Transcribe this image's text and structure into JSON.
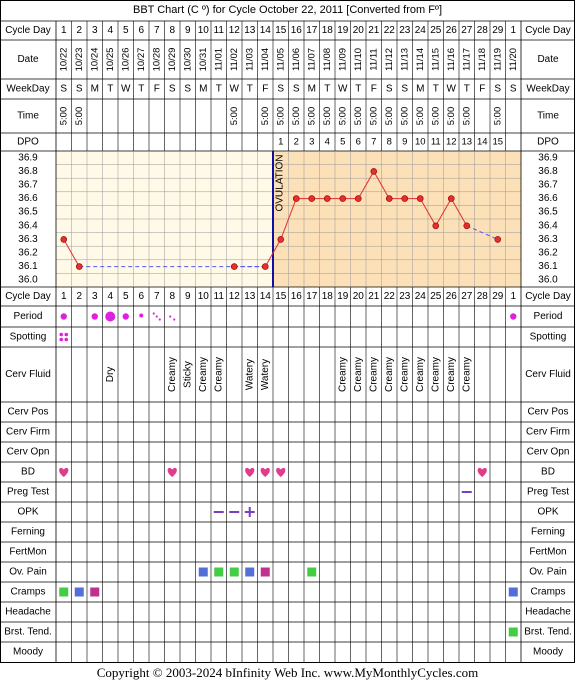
{
  "title": "BBT Chart (C º) for Cycle October 22, 2011  [Converted from Fº]",
  "footer": "Copyright © 2003-2024 bInfinity Web Inc.    www.MyMonthlyCycles.com",
  "labels": {
    "cycle_day": "Cycle Day",
    "date": "Date",
    "weekday": "WeekDay",
    "time": "Time",
    "dpo": "DPO",
    "ovulation": "OVULATION"
  },
  "colors": {
    "pre_ovulation_bg": "#FFF9E8",
    "post_ovulation_bg": "#FCE0B8",
    "ovulation_line": "#1010A0",
    "temp_line": "#E03030",
    "coverline": "#5555EE",
    "period": "#E020E0",
    "bd_heart": "#E03C8C",
    "opk": "#7A3FBF",
    "preg_test": "#7A3FBF",
    "green_square": "#44CC44",
    "blue_square": "#5470D8",
    "magenta_square": "#C0308E"
  },
  "columns": [
    {
      "day": "1",
      "date": "10/22",
      "weekday": "S",
      "time": "5:00"
    },
    {
      "day": "2",
      "date": "10/23",
      "weekday": "S",
      "time": "5:00"
    },
    {
      "day": "3",
      "date": "10/24",
      "weekday": "M",
      "time": ""
    },
    {
      "day": "4",
      "date": "10/25",
      "weekday": "T",
      "time": ""
    },
    {
      "day": "5",
      "date": "10/26",
      "weekday": "W",
      "time": ""
    },
    {
      "day": "6",
      "date": "10/27",
      "weekday": "T",
      "time": ""
    },
    {
      "day": "7",
      "date": "10/28",
      "weekday": "F",
      "time": ""
    },
    {
      "day": "8",
      "date": "10/29",
      "weekday": "S",
      "time": ""
    },
    {
      "day": "9",
      "date": "10/30",
      "weekday": "S",
      "time": ""
    },
    {
      "day": "10",
      "date": "10/31",
      "weekday": "M",
      "time": ""
    },
    {
      "day": "11",
      "date": "11/01",
      "weekday": "T",
      "time": ""
    },
    {
      "day": "12",
      "date": "11/02",
      "weekday": "W",
      "time": "5:00"
    },
    {
      "day": "13",
      "date": "11/03",
      "weekday": "T",
      "time": ""
    },
    {
      "day": "14",
      "date": "11/04",
      "weekday": "F",
      "time": "5:00"
    },
    {
      "day": "15",
      "date": "11/05",
      "weekday": "S",
      "time": "5:00"
    },
    {
      "day": "16",
      "date": "11/06",
      "weekday": "S",
      "time": "5:00"
    },
    {
      "day": "17",
      "date": "11/07",
      "weekday": "M",
      "time": "5:00"
    },
    {
      "day": "18",
      "date": "11/08",
      "weekday": "T",
      "time": "5:00"
    },
    {
      "day": "19",
      "date": "11/09",
      "weekday": "W",
      "time": "5:00"
    },
    {
      "day": "20",
      "date": "11/10",
      "weekday": "T",
      "time": "5:00"
    },
    {
      "day": "21",
      "date": "11/11",
      "weekday": "F",
      "time": "5:00"
    },
    {
      "day": "22",
      "date": "11/12",
      "weekday": "S",
      "time": "5:00"
    },
    {
      "day": "23",
      "date": "11/13",
      "weekday": "S",
      "time": "5:00"
    },
    {
      "day": "24",
      "date": "11/14",
      "weekday": "M",
      "time": "5:00"
    },
    {
      "day": "25",
      "date": "11/15",
      "weekday": "T",
      "time": "5:00"
    },
    {
      "day": "26",
      "date": "11/16",
      "weekday": "W",
      "time": "5:00"
    },
    {
      "day": "27",
      "date": "11/17",
      "weekday": "T",
      "time": "5:00"
    },
    {
      "day": "28",
      "date": "11/18",
      "weekday": "F",
      "time": ""
    },
    {
      "day": "29",
      "date": "11/19",
      "weekday": "S",
      "time": "5:00"
    },
    {
      "day": "1",
      "date": "11/20",
      "weekday": "S",
      "time": ""
    }
  ],
  "dpo": [
    "",
    "",
    "",
    "",
    "",
    "",
    "",
    "",
    "",
    "",
    "",
    "",
    "",
    "",
    "1",
    "2",
    "3",
    "4",
    "5",
    "6",
    "7",
    "8",
    "9",
    "10",
    "11",
    "12",
    "13",
    "14",
    "15",
    ""
  ],
  "chart_data": {
    "type": "line",
    "x": [
      1,
      2,
      3,
      4,
      5,
      6,
      7,
      8,
      9,
      10,
      11,
      12,
      13,
      14,
      15,
      16,
      17,
      18,
      19,
      20,
      21,
      22,
      23,
      24,
      25,
      26,
      27,
      28,
      29
    ],
    "series": [
      {
        "values": [
          36.3,
          36.1,
          null,
          null,
          null,
          null,
          null,
          null,
          null,
          null,
          null,
          36.1,
          null,
          36.1,
          36.3,
          36.6,
          36.6,
          36.6,
          36.6,
          36.6,
          36.8,
          36.6,
          36.6,
          36.6,
          36.4,
          36.6,
          36.4,
          null,
          36.3
        ]
      }
    ],
    "y_ticks": [
      "36.9",
      "36.8",
      "36.7",
      "36.6",
      "36.5",
      "36.4",
      "36.3",
      "36.2",
      "36.1",
      "36.0"
    ],
    "ylim": [
      36.0,
      36.9
    ],
    "ovulation_day": 14,
    "coverline": {
      "value": 36.1,
      "from_day": 2,
      "to_day": 14
    },
    "grid": true,
    "legend": "none"
  },
  "rows": [
    {
      "label": "Period",
      "kind": "period",
      "cells": [
        {
          "c": 1,
          "v": "big"
        },
        {
          "c": 3,
          "v": "big"
        },
        {
          "c": 4,
          "v": "large"
        },
        {
          "c": 5,
          "v": "big"
        },
        {
          "c": 6,
          "v": "small"
        },
        {
          "c": 7,
          "v": "spot"
        },
        {
          "c": 8,
          "v": "spot2"
        },
        {
          "c": 30,
          "v": "big"
        }
      ]
    },
    {
      "label": "Spotting",
      "kind": "spotting",
      "cells": [
        {
          "c": 1,
          "v": "dots"
        }
      ]
    },
    {
      "label": "Cerv Fluid",
      "kind": "text",
      "cells": [
        {
          "c": 4,
          "v": "Dry"
        },
        {
          "c": 8,
          "v": "Creamy"
        },
        {
          "c": 9,
          "v": "Sticky"
        },
        {
          "c": 10,
          "v": "Creamy"
        },
        {
          "c": 11,
          "v": "Creamy"
        },
        {
          "c": 13,
          "v": "Watery"
        },
        {
          "c": 14,
          "v": "Watery"
        },
        {
          "c": 19,
          "v": "Creamy"
        },
        {
          "c": 20,
          "v": "Creamy"
        },
        {
          "c": 21,
          "v": "Creamy"
        },
        {
          "c": 22,
          "v": "Creamy"
        },
        {
          "c": 23,
          "v": "Creamy"
        },
        {
          "c": 24,
          "v": "Creamy"
        },
        {
          "c": 25,
          "v": "Creamy"
        },
        {
          "c": 26,
          "v": "Creamy"
        },
        {
          "c": 27,
          "v": "Creamy"
        }
      ]
    },
    {
      "label": "Cerv Pos",
      "kind": "none",
      "cells": []
    },
    {
      "label": "Cerv Firm",
      "kind": "none",
      "cells": []
    },
    {
      "label": "Cerv Opn",
      "kind": "none",
      "cells": []
    },
    {
      "label": "BD",
      "kind": "heart",
      "cells": [
        {
          "c": 1
        },
        {
          "c": 8
        },
        {
          "c": 13
        },
        {
          "c": 14
        },
        {
          "c": 15
        },
        {
          "c": 28
        }
      ]
    },
    {
      "label": "Preg Test",
      "kind": "dash",
      "cells": [
        {
          "c": 27
        }
      ]
    },
    {
      "label": "OPK",
      "kind": "opk",
      "cells": [
        {
          "c": 11,
          "v": "-"
        },
        {
          "c": 12,
          "v": "-"
        },
        {
          "c": 13,
          "v": "+"
        }
      ]
    },
    {
      "label": "Ferning",
      "kind": "none",
      "cells": []
    },
    {
      "label": "FertMon",
      "kind": "none",
      "cells": []
    },
    {
      "label": "Ov. Pain",
      "kind": "square",
      "cells": [
        {
          "c": 10,
          "v": "blue"
        },
        {
          "c": 11,
          "v": "green"
        },
        {
          "c": 12,
          "v": "green"
        },
        {
          "c": 13,
          "v": "blue"
        },
        {
          "c": 14,
          "v": "magenta"
        },
        {
          "c": 17,
          "v": "green"
        }
      ]
    },
    {
      "label": "Cramps",
      "kind": "square",
      "cells": [
        {
          "c": 1,
          "v": "green"
        },
        {
          "c": 2,
          "v": "blue"
        },
        {
          "c": 3,
          "v": "magenta"
        },
        {
          "c": 30,
          "v": "blue"
        }
      ]
    },
    {
      "label": "Headache",
      "kind": "none",
      "cells": []
    },
    {
      "label": "Brst. Tend.",
      "kind": "square",
      "cells": [
        {
          "c": 30,
          "v": "green"
        }
      ]
    },
    {
      "label": "Moody",
      "kind": "none",
      "cells": []
    }
  ]
}
